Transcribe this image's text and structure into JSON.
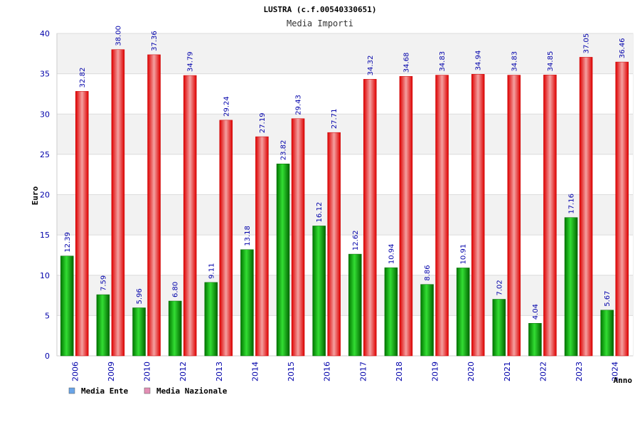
{
  "chart_data": {
    "type": "bar",
    "title": "LUSTRA (c.f.00540330651)",
    "subtitle": "Media Importi",
    "xlabel": "Anno",
    "ylabel": "Euro",
    "ylim": [
      0,
      40
    ],
    "yticks": [
      0,
      5,
      10,
      15,
      20,
      25,
      30,
      35,
      40
    ],
    "grid": true,
    "legend_position": "bottom-left",
    "categories": [
      "2006",
      "2009",
      "2010",
      "2012",
      "2013",
      "2014",
      "2015",
      "2016",
      "2017",
      "2018",
      "2019",
      "2020",
      "2021",
      "2022",
      "2023",
      "2024"
    ],
    "series": [
      {
        "name": "Media Ente",
        "color": "#00aa00",
        "legend_color": "#6aa5e8",
        "values": [
          12.39,
          7.59,
          5.96,
          6.8,
          9.11,
          13.18,
          23.82,
          16.12,
          12.62,
          10.94,
          8.86,
          10.91,
          7.02,
          4.04,
          17.16,
          5.67
        ],
        "labels": [
          "12.39",
          "7.59",
          "5.96",
          "6.80",
          "9.11",
          "13.18",
          "23.82",
          "16.12",
          "12.62",
          "10.94",
          "8.86",
          "10.91",
          "7.02",
          "4.04",
          "17.16",
          "5.67"
        ]
      },
      {
        "name": "Media Nazionale",
        "color": "#ee0000",
        "legend_color": "#e48fb5",
        "values": [
          32.82,
          38.0,
          37.36,
          34.79,
          29.24,
          27.19,
          29.43,
          27.71,
          34.32,
          34.68,
          34.83,
          34.94,
          34.83,
          34.85,
          37.05,
          36.46
        ],
        "labels": [
          "32.82",
          "38.00",
          "37.36",
          "34.79",
          "29.24",
          "27.19",
          "29.43",
          "27.71",
          "34.32",
          "34.68",
          "34.83",
          "34.94",
          "34.83",
          "34.85",
          "37.05",
          "36.46"
        ]
      }
    ]
  }
}
